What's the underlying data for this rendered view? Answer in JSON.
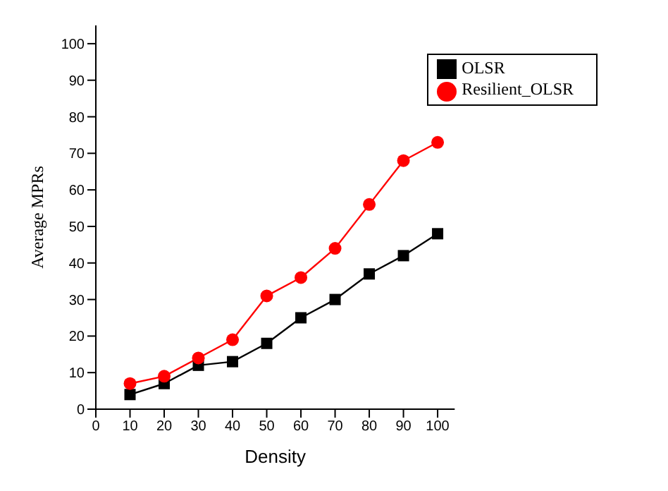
{
  "chart_data": {
    "type": "line",
    "xlabel": "Density",
    "ylabel": "Average MPRs",
    "x": [
      10,
      20,
      30,
      40,
      50,
      60,
      70,
      80,
      90,
      100
    ],
    "series": [
      {
        "name": "OLSR",
        "color": "#000000",
        "marker": "square",
        "values": [
          4,
          7,
          12,
          13,
          18,
          25,
          30,
          37,
          42,
          48
        ]
      },
      {
        "name": "Resilient_OLSR",
        "color": "#ff0000",
        "marker": "circle",
        "values": [
          7,
          9,
          14,
          19,
          31,
          36,
          44,
          56,
          68,
          73
        ]
      }
    ],
    "xlim": [
      0,
      105
    ],
    "xticks": [
      0,
      10,
      20,
      30,
      40,
      50,
      60,
      70,
      80,
      90,
      100
    ],
    "ylim": [
      0,
      105
    ],
    "yticks": [
      0,
      10,
      20,
      30,
      40,
      50,
      60,
      70,
      80,
      90,
      100
    ],
    "grid": false,
    "legend": "top right",
    "line_style": "solid"
  }
}
